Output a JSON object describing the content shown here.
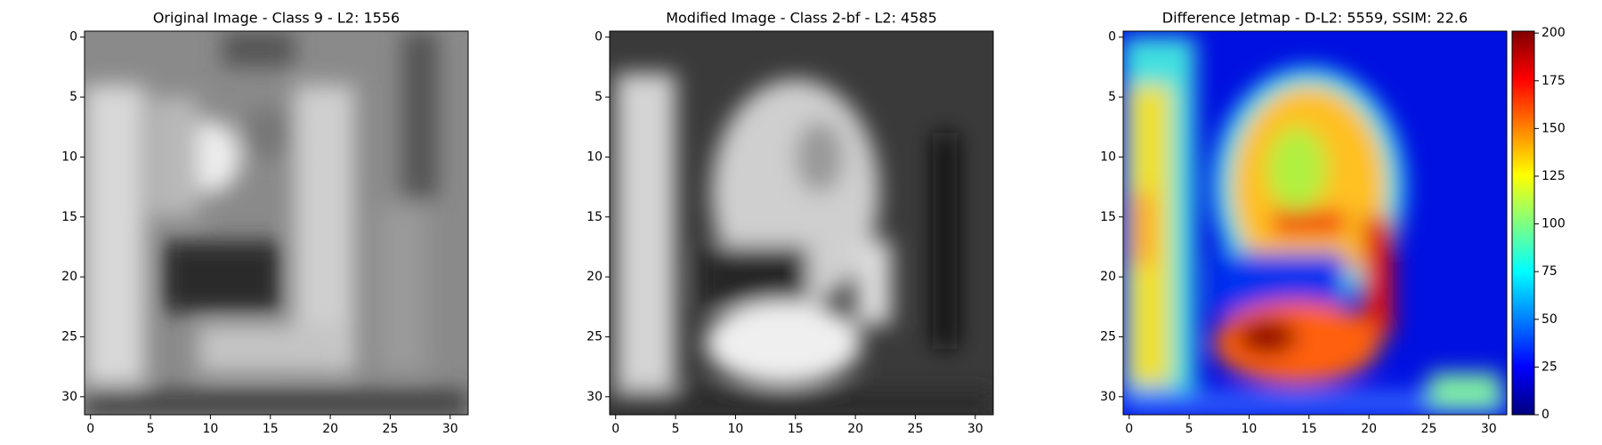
{
  "chart_data": [
    {
      "type": "image",
      "title": "Original Image - Class 9 - L2: 1556",
      "title_color": "#ff0000",
      "xlim": [
        -0.5,
        31.5
      ],
      "ylim": [
        31.5,
        -0.5
      ],
      "xticks": [
        0,
        5,
        10,
        15,
        20,
        25,
        30
      ],
      "yticks": [
        0,
        5,
        10,
        15,
        20,
        25,
        30
      ]
    },
    {
      "type": "image",
      "title": "Modified Image - Class 2-bf - L2: 4585",
      "xlim": [
        -0.5,
        31.5
      ],
      "ylim": [
        31.5,
        -0.5
      ],
      "xticks": [
        0,
        5,
        10,
        15,
        20,
        25,
        30
      ],
      "yticks": [
        0,
        5,
        10,
        15,
        20,
        25,
        30
      ]
    },
    {
      "type": "image",
      "title": "Difference Jetmap - D-L2: 5559, SSIM: 22.6",
      "xlim": [
        -0.5,
        31.5
      ],
      "ylim": [
        31.5,
        -0.5
      ],
      "xticks": [
        0,
        5,
        10,
        15,
        20,
        25,
        30
      ],
      "yticks": [
        0,
        5,
        10,
        15,
        20,
        25,
        30
      ],
      "colorbar": {
        "lim": [
          0,
          201
        ],
        "ticks": [
          0,
          25,
          50,
          75,
          100,
          125,
          150,
          175,
          200
        ]
      }
    }
  ]
}
